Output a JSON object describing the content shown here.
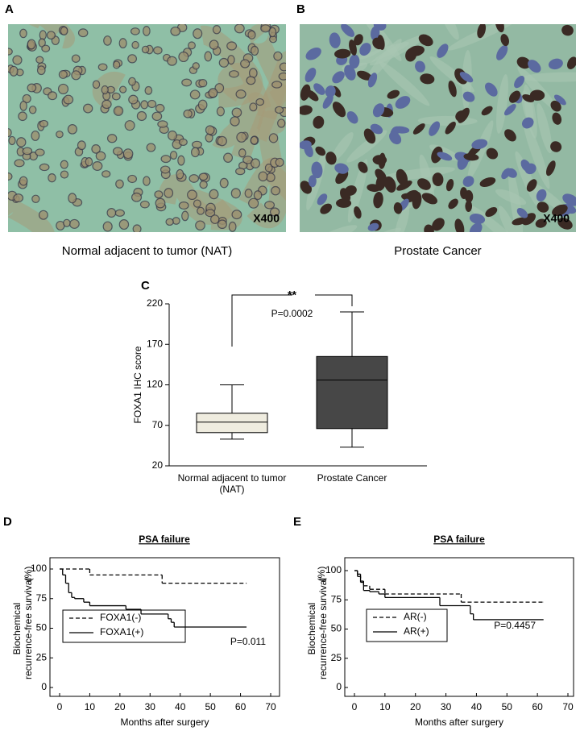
{
  "panels": [
    {
      "label": "A",
      "caption": "Normal adjacent to tumor (NAT)",
      "magnification": "X400"
    },
    {
      "label": "B",
      "caption": "Prostate Cancer",
      "magnification": "X400"
    }
  ],
  "chart_data": [
    {
      "type": "box",
      "label": "C",
      "ylabel": "FOXA1   IHC score",
      "categories": [
        "Normal adjacent to tumor (NAT)",
        "Prostate Cancer"
      ],
      "boxes": [
        {
          "min": 53,
          "q1": 61,
          "median": 74,
          "q3": 85,
          "max": 120,
          "color": "#efecdf"
        },
        {
          "min": 43,
          "q1": 66,
          "median": 126,
          "q3": 155,
          "max": 210,
          "color": "#474747"
        }
      ],
      "significance": "**",
      "p_value": "P=0.0002",
      "ylim": [
        20,
        220
      ],
      "yticks": [
        20,
        70,
        120,
        170,
        220
      ]
    },
    {
      "type": "km",
      "label": "D",
      "title": "PSA failure",
      "ylabel": [
        "Biochemical",
        "recurrence-free survival"
      ],
      "yunit": "(%)",
      "xlabel": "Months after surgery",
      "xlim": [
        0,
        70
      ],
      "xticks": [
        0,
        10,
        20,
        30,
        40,
        50,
        60,
        70
      ],
      "ylim": [
        0,
        100
      ],
      "yticks": [
        0,
        25,
        50,
        75,
        100
      ],
      "series": [
        {
          "name": "FOXA1(-)",
          "color": "#000000",
          "dashed": true,
          "x": [
            0,
            10,
            34,
            62
          ],
          "values": [
            100,
            95,
            88,
            88
          ]
        },
        {
          "name": "FOXA1(+)",
          "color": "#000000",
          "dashed": false,
          "x": [
            0,
            1,
            2,
            3,
            4,
            5,
            8,
            10,
            22,
            27,
            36,
            37,
            38,
            62
          ],
          "values": [
            100,
            95,
            88,
            80,
            76,
            75,
            72,
            69,
            66,
            62,
            58,
            55,
            51,
            51
          ]
        }
      ],
      "p_value": "P=0.011"
    },
    {
      "type": "km",
      "label": "E",
      "title": "PSA failure",
      "ylabel": [
        "Biochemical",
        "recurrence-free survival"
      ],
      "yunit": "(%)",
      "xlabel": "Months after surgery",
      "xlim": [
        0,
        70
      ],
      "xticks": [
        0,
        10,
        20,
        30,
        40,
        50,
        60,
        70
      ],
      "ylim": [
        0,
        100
      ],
      "yticks": [
        0,
        25,
        50,
        75,
        100
      ],
      "series": [
        {
          "name": "AR(-)",
          "color": "#000000",
          "dashed": true,
          "x": [
            0,
            1,
            2,
            3,
            5,
            10,
            35,
            62
          ],
          "values": [
            100,
            97,
            91,
            87,
            84,
            80,
            73,
            73
          ]
        },
        {
          "name": "AR(+)",
          "color": "#000000",
          "dashed": false,
          "x": [
            0,
            1,
            2,
            3,
            5,
            8,
            10,
            28,
            38,
            39,
            62
          ],
          "values": [
            100,
            95,
            90,
            83,
            82,
            80,
            77,
            70,
            63,
            58,
            58
          ]
        }
      ],
      "p_value": "P=0.4457"
    }
  ]
}
